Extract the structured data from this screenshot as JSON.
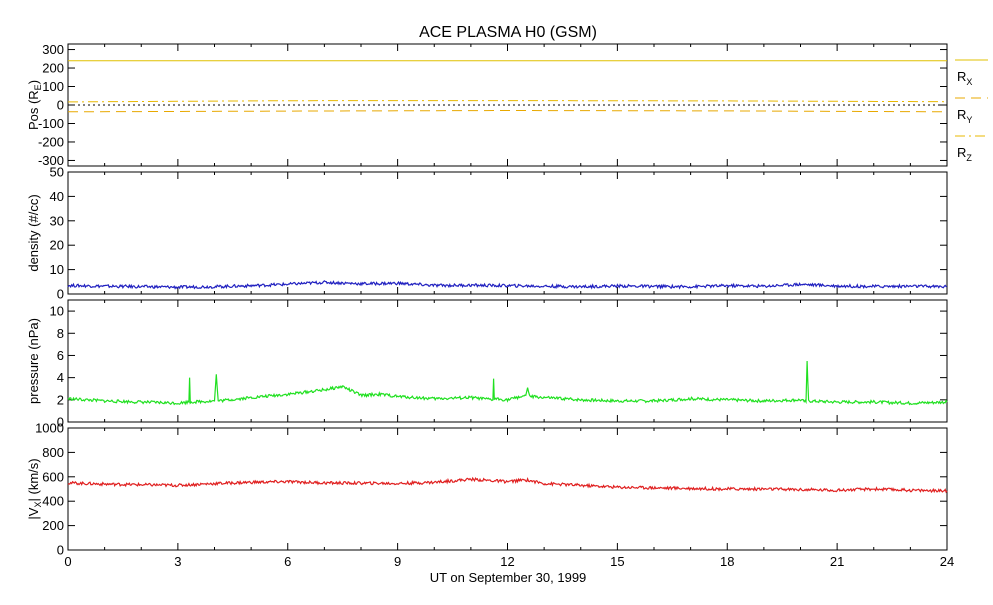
{
  "title": "ACE PLASMA H0 (GSM)",
  "xlabel": "UT on September 30, 1999",
  "x_ticks": [
    "0",
    "3",
    "6",
    "9",
    "12",
    "15",
    "18",
    "21",
    "24"
  ],
  "chart_data": [
    {
      "type": "line",
      "ylabel_main": "Pos (R",
      "ylabel_sub": "E",
      "ylabel_end": ")",
      "xlim": [
        0,
        24
      ],
      "ylim": [
        -330,
        330
      ],
      "yticks": [
        -300,
        -200,
        -100,
        0,
        100,
        200,
        300
      ],
      "ytick_labels": [
        "-300",
        "-200",
        "-100",
        "0",
        "100",
        "200",
        "300"
      ],
      "zero_line": true,
      "series": [
        {
          "name": "R",
          "sub": "X",
          "style": "solid",
          "color": "#e0c000",
          "x": [
            0,
            24
          ],
          "values": [
            239,
            239
          ]
        },
        {
          "name": "R",
          "sub": "Y",
          "style": "dash",
          "color": "#e8a800",
          "x": [
            0,
            6,
            12,
            18,
            24
          ],
          "values": [
            -37,
            -33,
            -30,
            -32,
            -37
          ]
        },
        {
          "name": "R",
          "sub": "Z",
          "style": "dashdot",
          "color": "#e8b800",
          "x": [
            0,
            6,
            12,
            18,
            24
          ],
          "values": [
            17,
            23,
            24,
            22,
            18
          ]
        }
      ]
    },
    {
      "type": "line",
      "ylabel": "density (#/cc)",
      "xlim": [
        0,
        24
      ],
      "ylim": [
        0,
        50
      ],
      "yticks": [
        0,
        10,
        20,
        30,
        40,
        50
      ],
      "ytick_labels": [
        "0",
        "10",
        "20",
        "30",
        "40",
        "50"
      ],
      "series": [
        {
          "color": "#2020c0",
          "x": [
            0,
            1,
            2,
            3,
            4,
            5,
            6,
            7,
            8,
            9,
            10,
            11,
            12,
            13,
            14,
            15,
            16,
            17,
            18,
            19,
            20,
            21,
            22,
            23,
            24
          ],
          "values": [
            3.5,
            3.2,
            3.0,
            2.8,
            3.0,
            3.4,
            4.0,
            4.8,
            4.2,
            4.4,
            3.5,
            3.6,
            3.4,
            3.2,
            3.0,
            3.3,
            3.1,
            3.0,
            3.4,
            3.2,
            4.0,
            3.3,
            3.1,
            3.2,
            3.0
          ]
        }
      ]
    },
    {
      "type": "line",
      "ylabel": "pressure (nPa)",
      "xlim": [
        0,
        24
      ],
      "ylim": [
        0,
        11
      ],
      "yticks": [
        0,
        2,
        4,
        6,
        8,
        10
      ],
      "ytick_labels": [
        "0",
        "2",
        "4",
        "6",
        "8",
        "10"
      ],
      "series": [
        {
          "color": "#20e020",
          "x": [
            0,
            1,
            2,
            3,
            3.3,
            3.32,
            3.34,
            4,
            4.05,
            4.1,
            5,
            6,
            7,
            7.5,
            8,
            8.5,
            9,
            10,
            11,
            11.6,
            11.62,
            11.64,
            12,
            12.5,
            12.55,
            12.6,
            13,
            14,
            15,
            16,
            17,
            18,
            19,
            20,
            20.15,
            20.18,
            20.22,
            21,
            22,
            23,
            24
          ],
          "values": [
            2.1,
            1.9,
            1.8,
            1.7,
            1.8,
            4.0,
            1.8,
            1.9,
            4.3,
            1.9,
            2.2,
            2.5,
            2.9,
            3.2,
            2.4,
            2.5,
            2.3,
            2.1,
            2.2,
            2.0,
            3.9,
            2.1,
            2.0,
            2.4,
            3.1,
            2.3,
            2.2,
            2.0,
            1.9,
            1.9,
            2.1,
            2.0,
            1.9,
            2.0,
            1.8,
            5.5,
            1.9,
            1.8,
            1.8,
            1.7,
            1.8
          ]
        }
      ]
    },
    {
      "type": "line",
      "ylabel_main": "|V",
      "ylabel_sub": "X",
      "ylabel_end": "| (km/s)",
      "xlim": [
        0,
        24
      ],
      "ylim": [
        0,
        1000
      ],
      "yticks": [
        0,
        200,
        400,
        600,
        800,
        1000
      ],
      "ytick_labels": [
        "0",
        "200",
        "400",
        "600",
        "800",
        "1000"
      ],
      "series": [
        {
          "color": "#e02020",
          "x": [
            0,
            1,
            2,
            3,
            4,
            5,
            6,
            7,
            8,
            9,
            10,
            11,
            12,
            12.5,
            13,
            14,
            15,
            16,
            17,
            18,
            19,
            20,
            21,
            22,
            23,
            24
          ],
          "values": [
            550,
            540,
            535,
            530,
            545,
            555,
            560,
            550,
            548,
            545,
            555,
            580,
            560,
            575,
            545,
            530,
            515,
            510,
            505,
            500,
            500,
            495,
            490,
            500,
            490,
            485
          ]
        }
      ]
    }
  ]
}
